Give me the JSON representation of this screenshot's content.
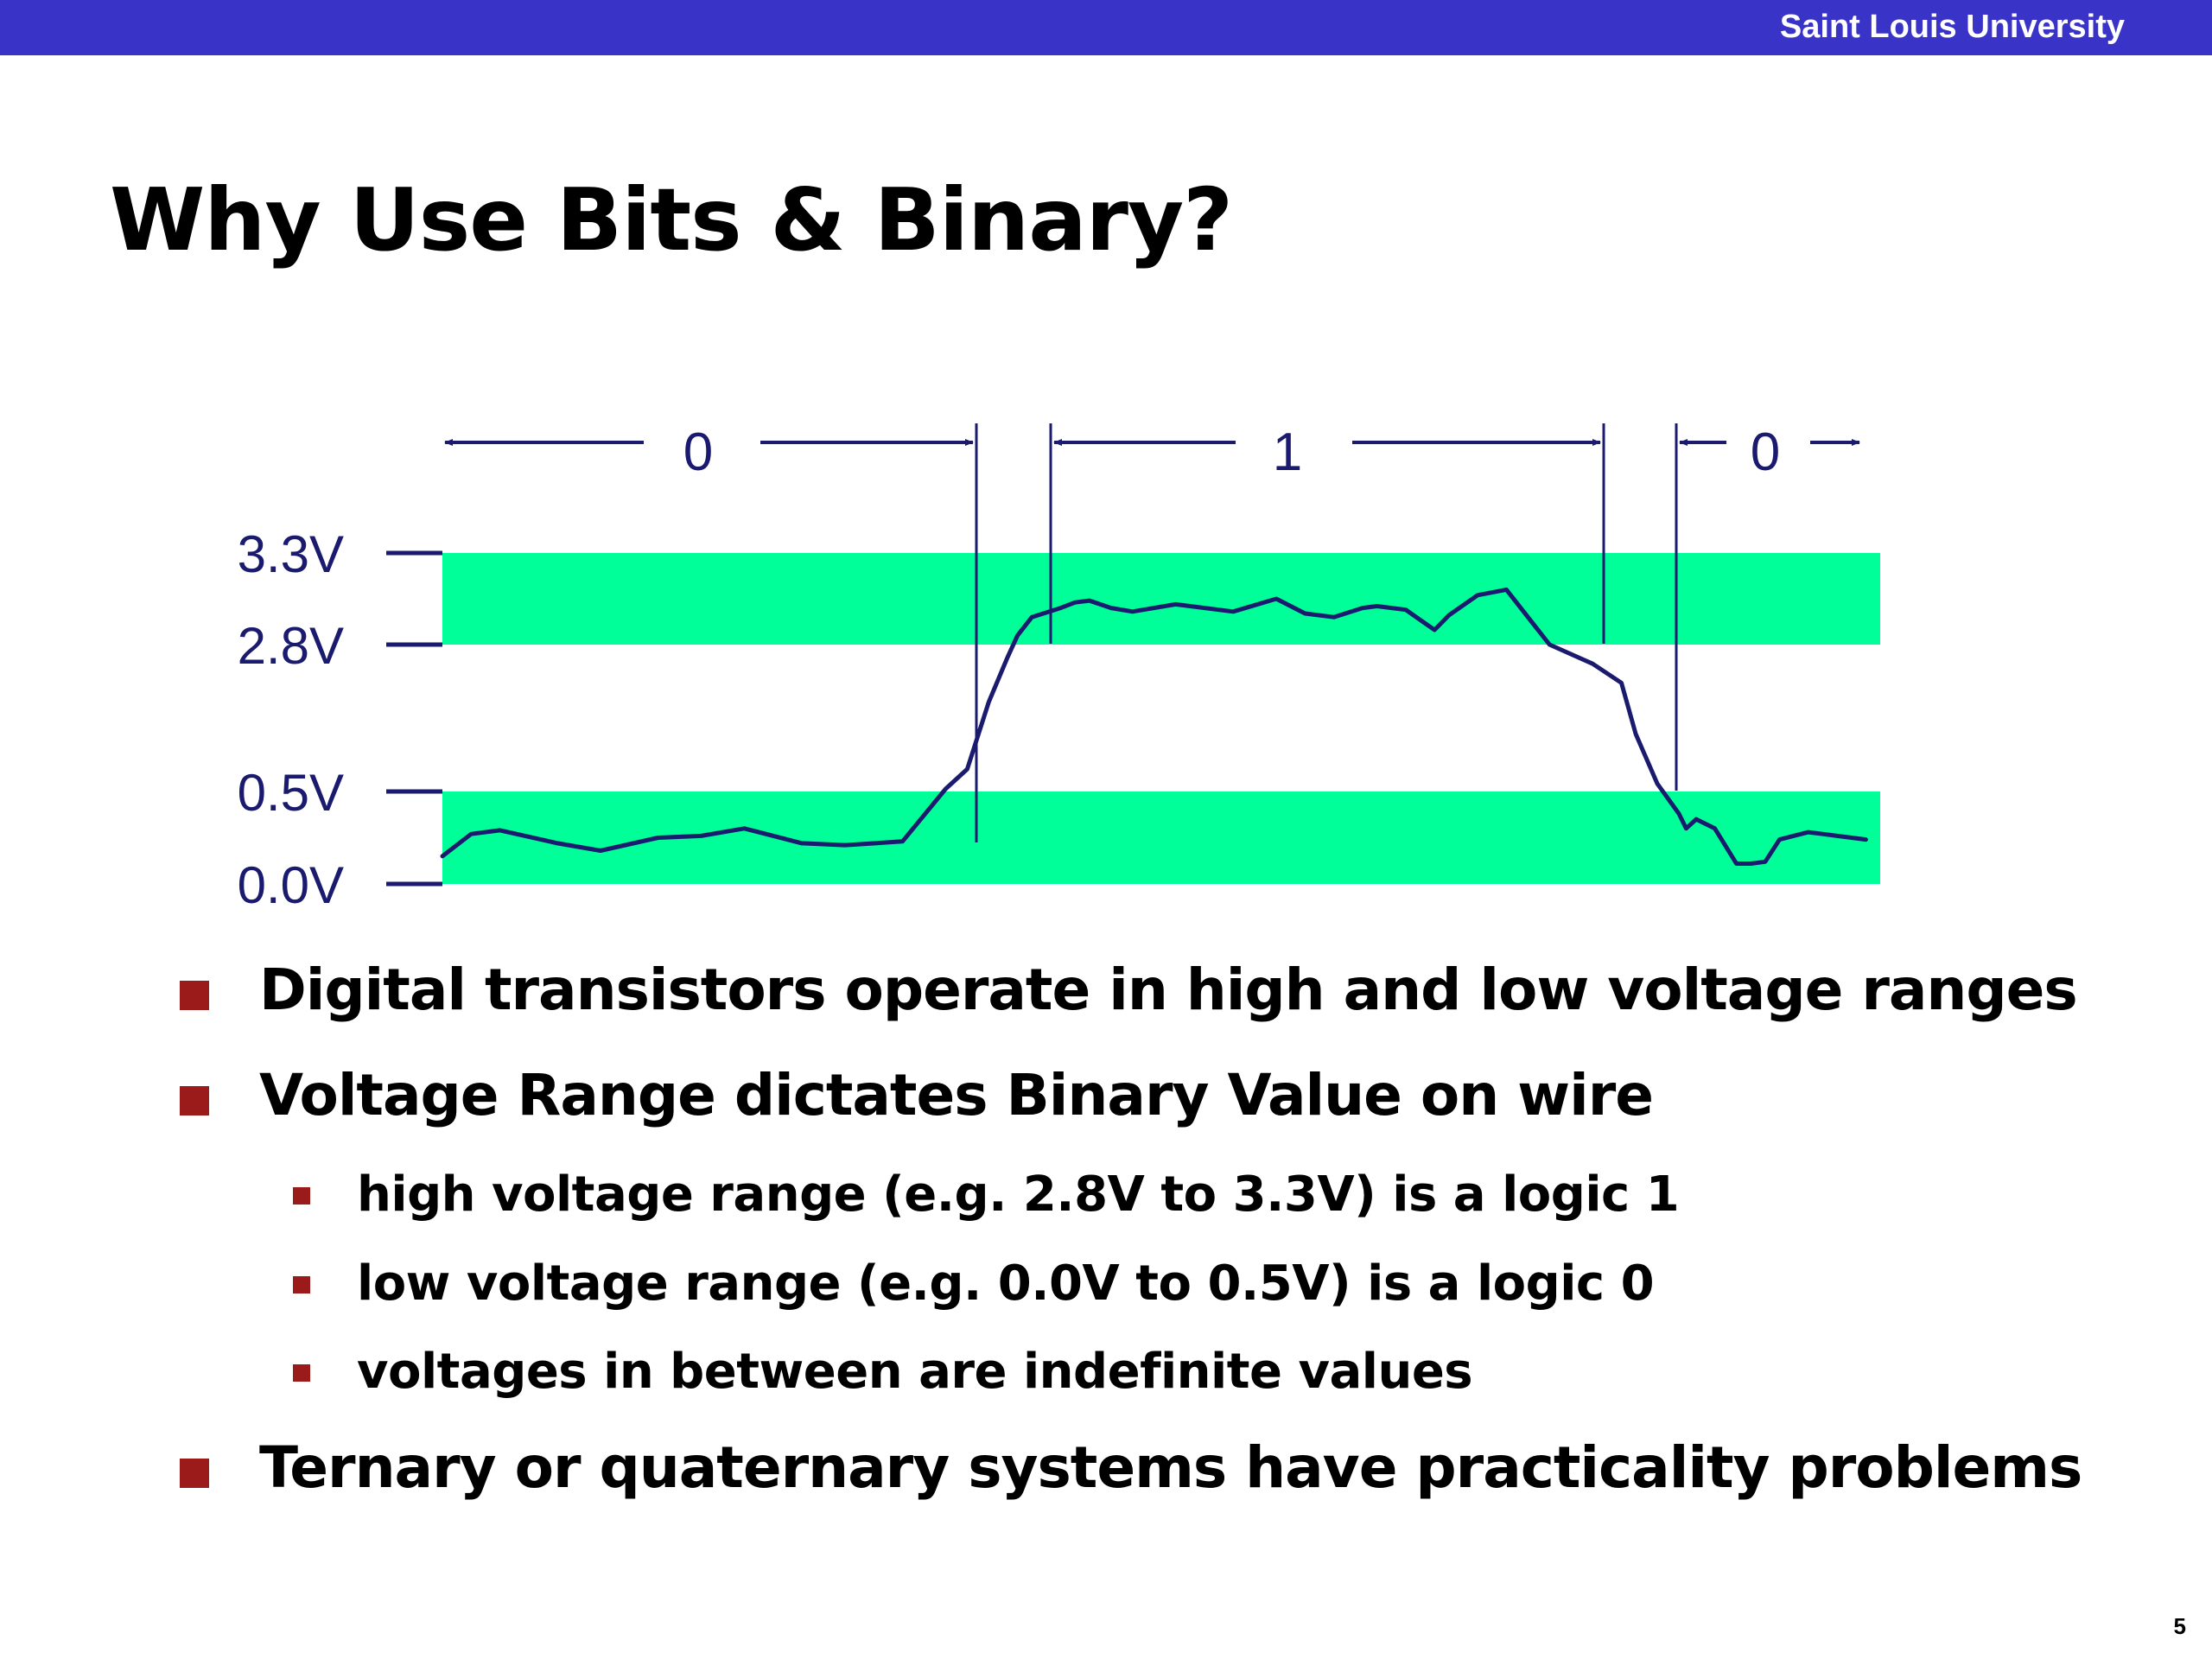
{
  "header": {
    "institution": "Saint Louis University"
  },
  "slide": {
    "title": "Why Use Bits & Binary?",
    "page_number": "5"
  },
  "chart_data": {
    "type": "line",
    "title": "",
    "y_labels": [
      "3.3V",
      "2.8V",
      "0.5V",
      "0.0V"
    ],
    "bands": [
      {
        "from": 2.8,
        "to": 3.3,
        "meaning": "1"
      },
      {
        "from": 0.0,
        "to": 0.5,
        "meaning": "0"
      }
    ],
    "interval_labels": [
      "0",
      "1",
      "0"
    ],
    "band_color": "#00ff99",
    "line_color": "#1a1a6e",
    "series": [
      {
        "x": [
          0,
          2,
          4,
          8,
          11,
          15,
          18,
          21,
          25,
          28,
          32,
          35,
          36.5,
          38,
          39.3,
          40,
          41,
          43,
          44,
          45,
          46.5,
          48,
          51,
          55,
          58,
          60,
          62,
          64,
          65,
          67,
          69,
          70,
          72,
          74,
          77,
          80,
          82,
          83,
          84.5,
          86,
          86.5,
          87.2,
          88.5,
          90,
          91,
          92,
          93,
          95,
          96,
          97,
          99
        ],
        "y": [
          0.15,
          0.27,
          0.29,
          0.22,
          0.18,
          0.25,
          0.26,
          0.3,
          0.22,
          0.21,
          0.23,
          0.54,
          0.85,
          1.9,
          2.6,
          2.85,
          2.95,
          3.0,
          3.03,
          3.04,
          3.0,
          2.98,
          3.02,
          2.98,
          3.05,
          2.97,
          2.95,
          3.0,
          3.01,
          2.99,
          2.88,
          2.96,
          3.07,
          3.1,
          2.8,
          2.5,
          2.2,
          1.4,
          0.62,
          0.38,
          0.3,
          0.35,
          0.3,
          0.11,
          0.11,
          0.12,
          0.24,
          0.28,
          0.27,
          0.26,
          0.24
        ]
      }
    ]
  },
  "bullets": [
    {
      "level": 1,
      "text": "Digital transistors operate in high and low voltage ranges"
    },
    {
      "level": 1,
      "text": "Voltage Range dictates Binary Value on wire"
    },
    {
      "level": 2,
      "text": "high voltage range (e.g. 2.8V to 3.3V) is a logic 1"
    },
    {
      "level": 2,
      "text": "low voltage range (e.g. 0.0V to 0.5V) is a logic 0"
    },
    {
      "level": 2,
      "text": "voltages in between are indefinite values"
    },
    {
      "level": 1,
      "text": "Ternary or quaternary systems have practicality problems"
    }
  ]
}
